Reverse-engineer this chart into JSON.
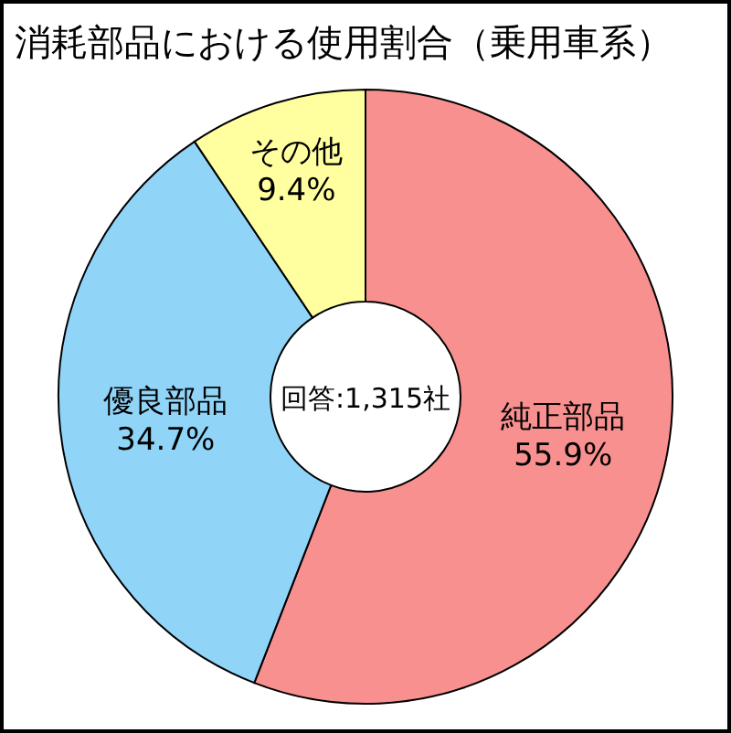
{
  "chart_data": {
    "type": "donut",
    "title": "消耗部品における使用割合（乗用車系）",
    "categories": [
      "純正部品",
      "優良部品",
      "その他"
    ],
    "values": [
      55.9,
      34.7,
      9.4
    ],
    "value_labels": [
      "55.9%",
      "34.7%",
      "9.4%"
    ],
    "colors": [
      "#f89090",
      "#90d4f8",
      "#ffffa0"
    ],
    "annotations": [
      "回答:1,315社"
    ]
  }
}
